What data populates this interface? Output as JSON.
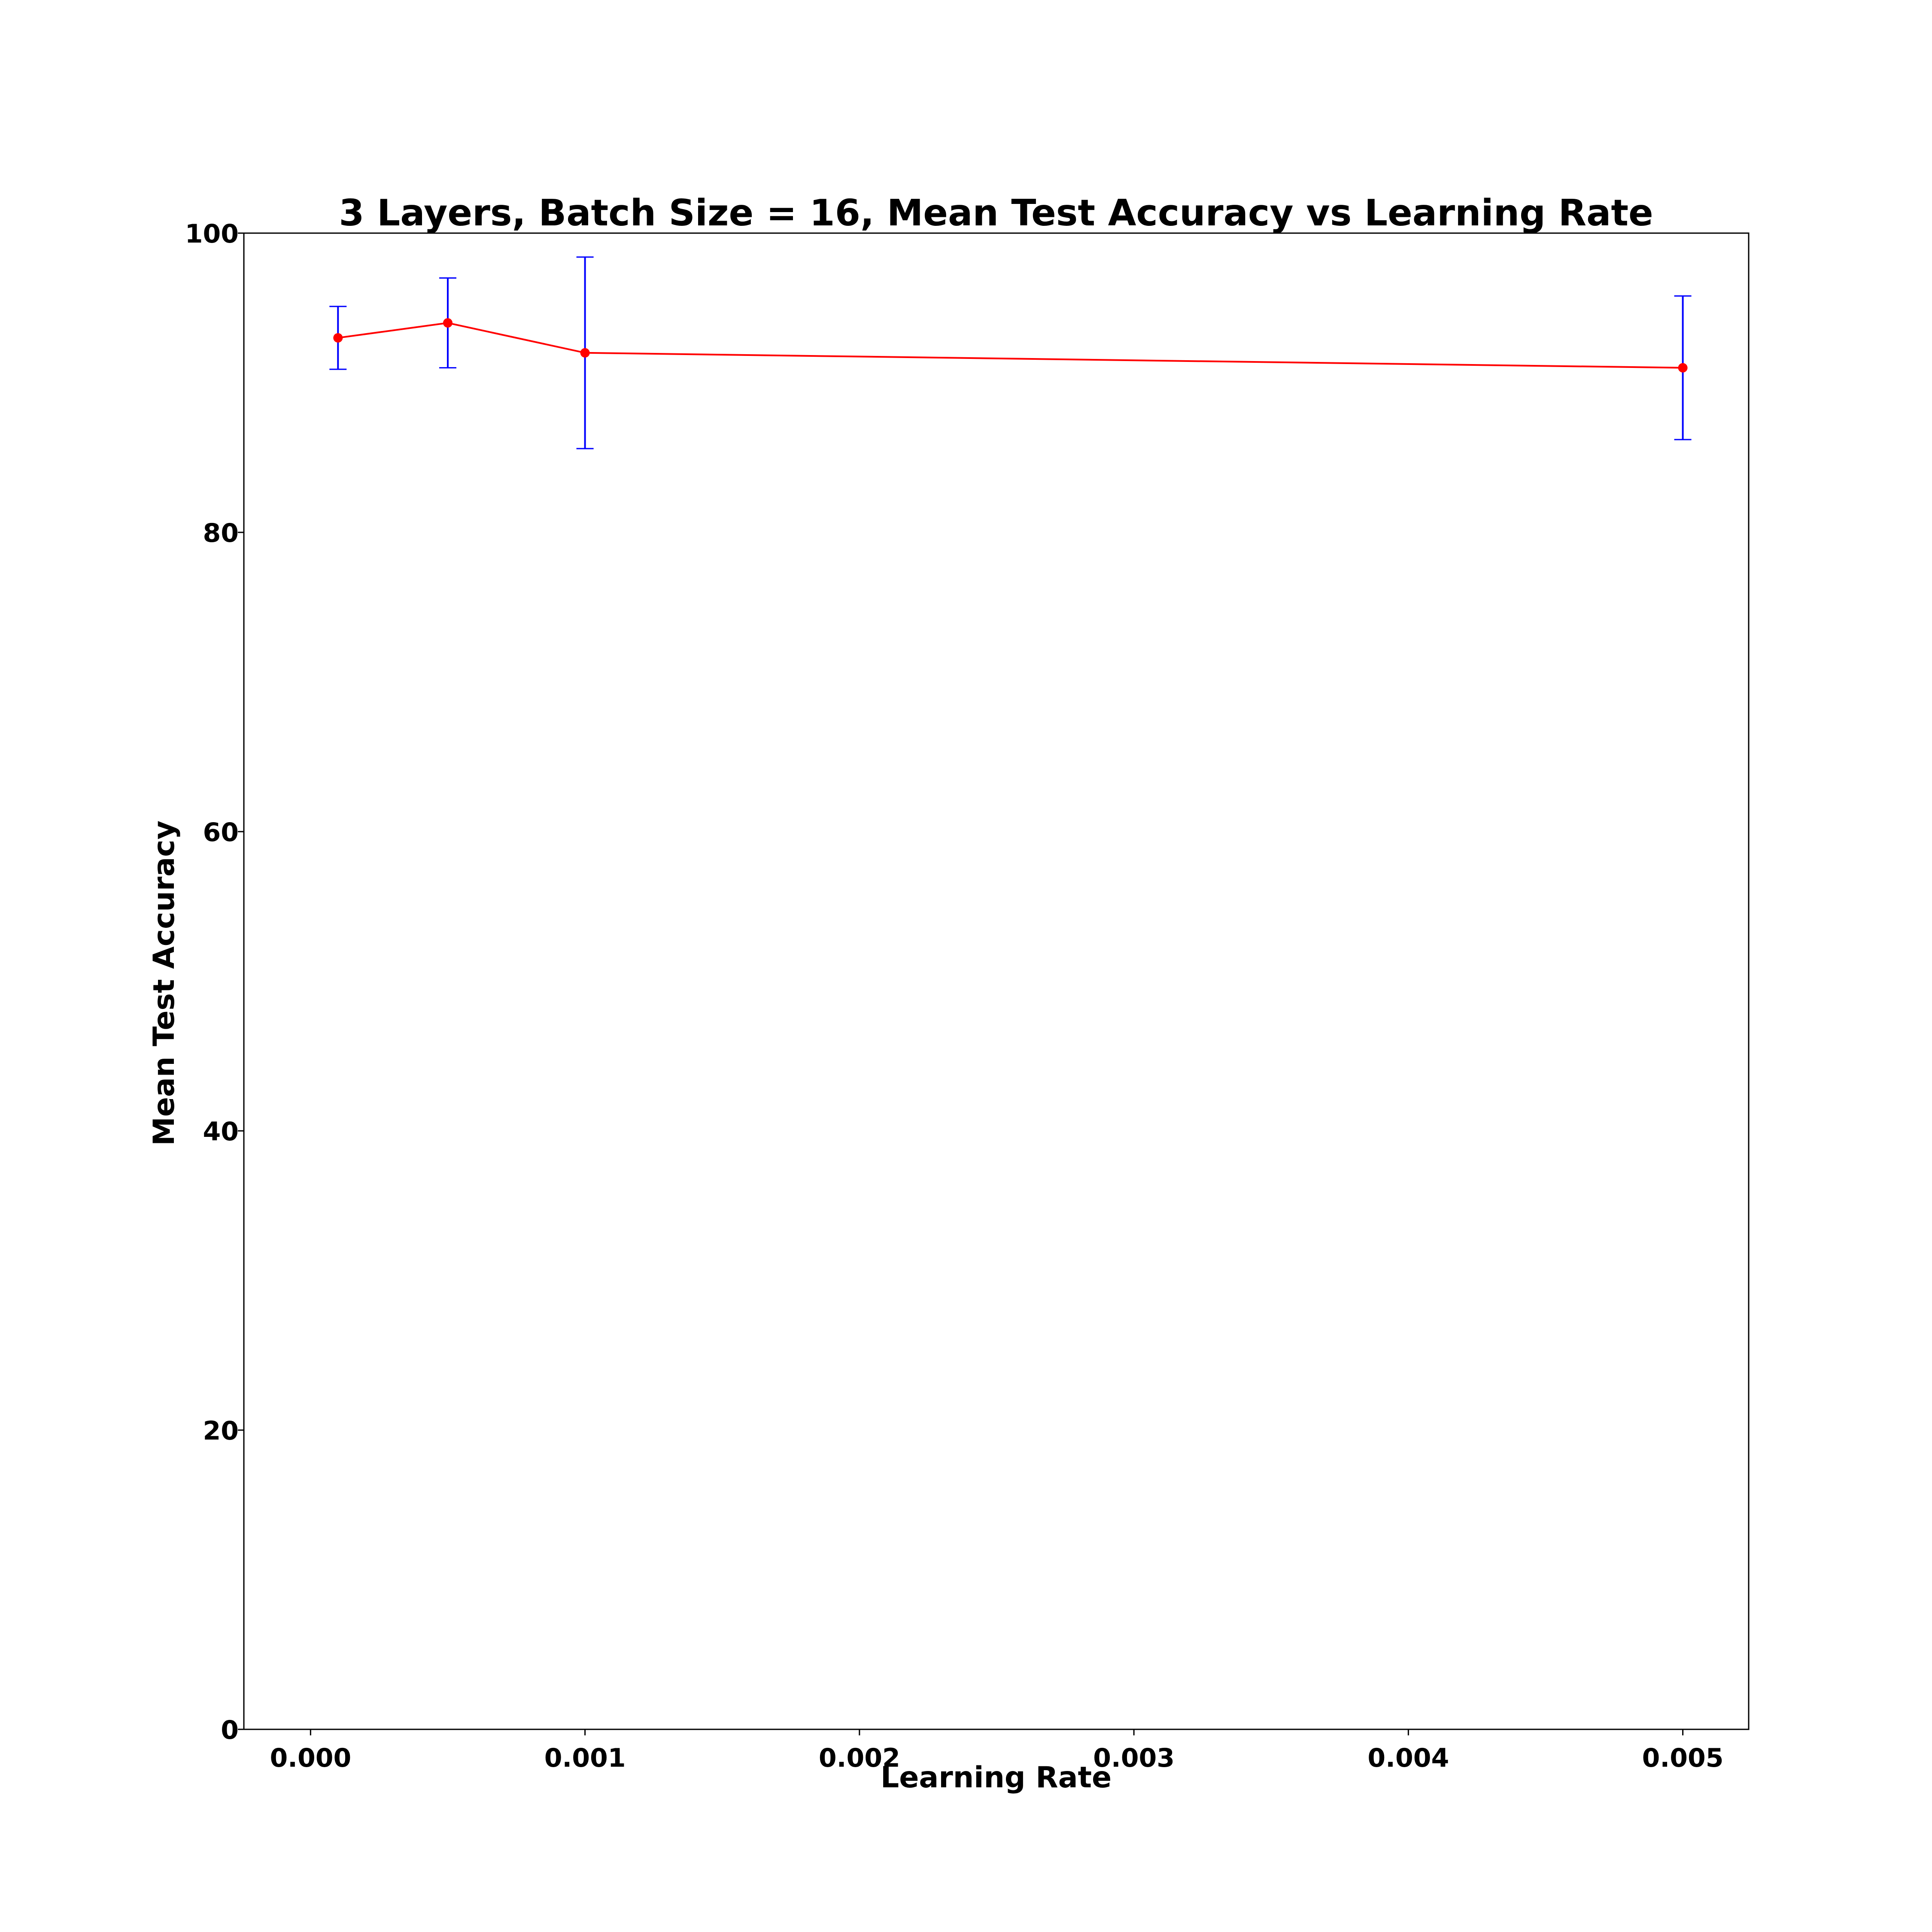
{
  "chart_data": {
    "type": "line",
    "title": "3 Layers, Batch Size = 16, Mean Test Accuracy vs Learning Rate",
    "xlabel": "Learning Rate",
    "ylabel": "Mean Test Accuracy",
    "xlim": [
      -0.000243,
      0.00524
    ],
    "ylim": [
      0,
      100
    ],
    "x_ticks": [
      0.0,
      0.001,
      0.002,
      0.003,
      0.004,
      0.005
    ],
    "x_tick_labels": [
      "0.000",
      "0.001",
      "0.002",
      "0.003",
      "0.004",
      "0.005"
    ],
    "y_ticks": [
      0,
      20,
      40,
      60,
      80,
      100
    ],
    "y_tick_labels": [
      "0",
      "20",
      "40",
      "60",
      "80",
      "100"
    ],
    "grid": false,
    "series": [
      {
        "x": [
          0.0001,
          0.0005,
          0.001,
          0.005
        ],
        "y": [
          93.0,
          94.0,
          92.0,
          91.0
        ],
        "error": [
          2.1,
          3.0,
          6.4,
          4.8
        ],
        "color": "#ff0000",
        "error_color": "#0000ff"
      }
    ]
  }
}
